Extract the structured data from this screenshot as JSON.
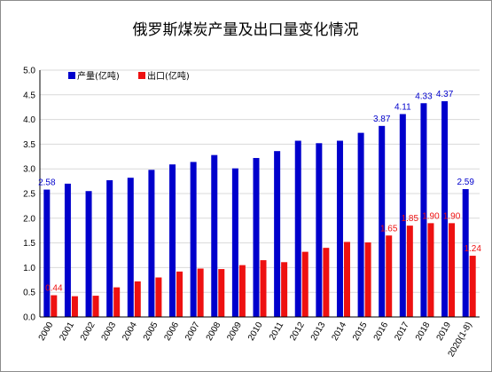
{
  "chart_data": {
    "type": "bar",
    "title": "俄罗斯煤炭产量及出口量变化情况",
    "categories": [
      "2000",
      "2001",
      "2002",
      "2003",
      "2004",
      "2005",
      "2006",
      "2007",
      "2008",
      "2009",
      "2010",
      "2011",
      "2012",
      "2013",
      "2014",
      "2015",
      "2016",
      "2017",
      "2018",
      "2019",
      "2020(1-8)"
    ],
    "series": [
      {
        "name": "产量(亿吨)",
        "color": "#0000cc",
        "values": [
          2.58,
          2.7,
          2.55,
          2.77,
          2.82,
          2.98,
          3.09,
          3.14,
          3.28,
          3.01,
          3.22,
          3.36,
          3.57,
          3.52,
          3.57,
          3.73,
          3.87,
          4.11,
          4.33,
          4.37,
          2.59
        ],
        "data_labels": {
          "0": "2.58",
          "16": "3.87",
          "17": "4.11",
          "18": "4.33",
          "19": "4.37",
          "20": "2.59"
        }
      },
      {
        "name": "出口(亿吨)",
        "color": "#ee1111",
        "values": [
          0.44,
          0.42,
          0.43,
          0.6,
          0.72,
          0.8,
          0.92,
          0.98,
          0.97,
          1.05,
          1.15,
          1.11,
          1.32,
          1.4,
          1.52,
          1.51,
          1.65,
          1.85,
          1.9,
          1.9,
          1.24
        ],
        "data_labels": {
          "0": "0.44",
          "16": "1.65",
          "17": "1.85",
          "18": "1.90",
          "19": "1.90",
          "20": "1.24"
        }
      }
    ],
    "ylim": [
      0,
      5.0
    ],
    "yticks": [
      "0.0",
      "0.5",
      "1.0",
      "1.5",
      "2.0",
      "2.5",
      "3.0",
      "3.5",
      "4.0",
      "4.5",
      "5.0"
    ],
    "grid": true,
    "legend_position": "top-left"
  }
}
